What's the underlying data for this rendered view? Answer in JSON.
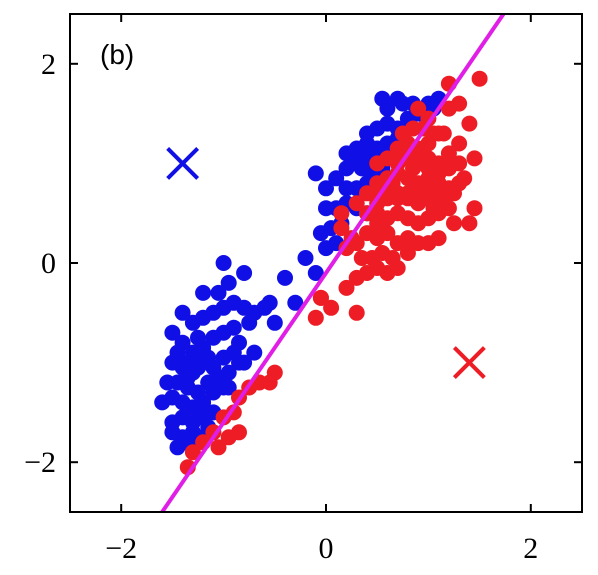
{
  "chart_data": {
    "type": "scatter",
    "title": "",
    "panel_label": "(b)",
    "xlabel": "",
    "ylabel": "",
    "xlim": [
      -2.5,
      2.5
    ],
    "ylim": [
      -2.5,
      2.5
    ],
    "x_ticks": [
      -2,
      0,
      2
    ],
    "x_tick_labels": [
      "−2",
      "0",
      "2"
    ],
    "y_ticks": [
      -2,
      0,
      2
    ],
    "y_tick_labels": [
      "−2",
      "0",
      "2"
    ],
    "grid": false,
    "legend": "none",
    "colors": {
      "blue": "#1010e6",
      "red": "#ee1c24",
      "line": "#e01ee6",
      "axes": "#000000"
    },
    "series": [
      {
        "color": "blue",
        "marker": "circle",
        "points": [
          [
            -1.4,
            -0.5
          ],
          [
            -1.3,
            -0.6
          ],
          [
            -1.2,
            -0.55
          ],
          [
            -1.1,
            -0.5
          ],
          [
            -1.0,
            -0.45
          ],
          [
            -0.9,
            -0.4
          ],
          [
            -0.8,
            -0.45
          ],
          [
            -1.05,
            -0.3
          ],
          [
            -0.95,
            -0.2
          ],
          [
            -0.8,
            -0.1
          ],
          [
            -1.2,
            -0.3
          ],
          [
            -1.0,
            0.0
          ],
          [
            -1.5,
            -0.7
          ],
          [
            -1.4,
            -0.8
          ],
          [
            -1.3,
            -0.9
          ],
          [
            -1.2,
            -0.85
          ],
          [
            -1.1,
            -0.75
          ],
          [
            -1.0,
            -0.7
          ],
          [
            -0.9,
            -0.65
          ],
          [
            -0.75,
            -0.6
          ],
          [
            -0.7,
            -0.5
          ],
          [
            -0.6,
            -0.45
          ],
          [
            -0.55,
            -0.4
          ],
          [
            -0.85,
            -0.8
          ],
          [
            -1.5,
            -1.0
          ],
          [
            -1.4,
            -1.05
          ],
          [
            -1.3,
            -1.1
          ],
          [
            -1.2,
            -1.0
          ],
          [
            -1.1,
            -1.05
          ],
          [
            -1.0,
            -0.95
          ],
          [
            -0.9,
            -0.9
          ],
          [
            -0.8,
            -1.0
          ],
          [
            -1.45,
            -1.2
          ],
          [
            -1.35,
            -1.25
          ],
          [
            -1.25,
            -1.3
          ],
          [
            -1.15,
            -1.2
          ],
          [
            -1.05,
            -1.15
          ],
          [
            -0.95,
            -1.1
          ],
          [
            -1.6,
            -1.4
          ],
          [
            -1.5,
            -1.35
          ],
          [
            -1.4,
            -1.4
          ],
          [
            -1.3,
            -1.45
          ],
          [
            -1.2,
            -1.4
          ],
          [
            -1.1,
            -1.3
          ],
          [
            -1.0,
            -1.25
          ],
          [
            -1.5,
            -1.6
          ],
          [
            -1.4,
            -1.55
          ],
          [
            -1.3,
            -1.6
          ],
          [
            -1.2,
            -1.55
          ],
          [
            -1.1,
            -1.5
          ],
          [
            -1.5,
            -1.7
          ],
          [
            -1.4,
            -1.75
          ],
          [
            -1.3,
            -1.7
          ],
          [
            -1.45,
            -1.85
          ],
          [
            -1.35,
            -1.8
          ],
          [
            -1.25,
            -1.75
          ],
          [
            -1.15,
            -1.65
          ],
          [
            -1.35,
            -1.0
          ],
          [
            -1.25,
            -0.75
          ],
          [
            -1.55,
            -1.2
          ],
          [
            -1.45,
            -0.9
          ],
          [
            -1.15,
            -0.95
          ],
          [
            -0.85,
            -1.0
          ],
          [
            -0.95,
            -1.25
          ],
          [
            -1.35,
            -1.15
          ],
          [
            -1.25,
            -1.05
          ],
          [
            -0.7,
            -0.9
          ],
          [
            -0.5,
            -0.6
          ],
          [
            -0.4,
            -0.15
          ],
          [
            -0.3,
            -0.4
          ],
          [
            -0.1,
            -0.1
          ],
          [
            -0.2,
            0.05
          ],
          [
            0.0,
            0.15
          ],
          [
            0.1,
            0.2
          ],
          [
            -0.05,
            0.3
          ],
          [
            0.05,
            0.35
          ],
          [
            0.15,
            0.4
          ],
          [
            0.0,
            0.55
          ],
          [
            0.1,
            0.55
          ],
          [
            0.2,
            0.6
          ],
          [
            0.3,
            0.55
          ],
          [
            0.4,
            0.5
          ],
          [
            0.2,
            0.75
          ],
          [
            0.3,
            0.75
          ],
          [
            0.4,
            0.8
          ],
          [
            0.5,
            0.85
          ],
          [
            0.1,
            0.85
          ],
          [
            0.2,
            0.95
          ],
          [
            0.3,
            1.0
          ],
          [
            0.4,
            1.05
          ],
          [
            0.5,
            1.0
          ],
          [
            0.6,
            1.05
          ],
          [
            0.2,
            1.1
          ],
          [
            0.3,
            1.15
          ],
          [
            0.4,
            1.2
          ],
          [
            0.5,
            1.15
          ],
          [
            0.6,
            1.2
          ],
          [
            0.7,
            1.25
          ],
          [
            0.4,
            1.3
          ],
          [
            0.5,
            1.35
          ],
          [
            0.6,
            1.4
          ],
          [
            0.7,
            1.35
          ],
          [
            0.8,
            1.45
          ],
          [
            0.9,
            1.5
          ],
          [
            0.6,
            1.55
          ],
          [
            0.75,
            1.6
          ],
          [
            0.85,
            1.6
          ],
          [
            1.0,
            1.6
          ],
          [
            1.1,
            1.65
          ],
          [
            1.05,
            1.55
          ],
          [
            0.55,
            1.65
          ],
          [
            0.7,
            1.65
          ],
          [
            -0.1,
            0.9
          ],
          [
            0.0,
            0.75
          ],
          [
            0.35,
            0.95
          ],
          [
            0.45,
            0.9
          ],
          [
            0.65,
            1.1
          ],
          [
            0.75,
            1.3
          ],
          [
            0.55,
            0.95
          ]
        ]
      },
      {
        "color": "red",
        "marker": "circle",
        "points": [
          [
            0.5,
            0.4
          ],
          [
            0.6,
            0.45
          ],
          [
            0.7,
            0.5
          ],
          [
            0.8,
            0.45
          ],
          [
            0.9,
            0.4
          ],
          [
            1.0,
            0.45
          ],
          [
            1.1,
            0.5
          ],
          [
            1.2,
            0.55
          ],
          [
            0.5,
            0.6
          ],
          [
            0.6,
            0.65
          ],
          [
            0.7,
            0.7
          ],
          [
            0.8,
            0.65
          ],
          [
            0.9,
            0.6
          ],
          [
            1.0,
            0.65
          ],
          [
            1.1,
            0.7
          ],
          [
            1.2,
            0.75
          ],
          [
            0.5,
            0.8
          ],
          [
            0.6,
            0.85
          ],
          [
            0.7,
            0.9
          ],
          [
            0.8,
            0.85
          ],
          [
            0.9,
            0.8
          ],
          [
            1.0,
            0.85
          ],
          [
            1.1,
            0.9
          ],
          [
            1.2,
            0.95
          ],
          [
            0.5,
            1.0
          ],
          [
            0.6,
            1.05
          ],
          [
            0.7,
            1.0
          ],
          [
            0.8,
            1.05
          ],
          [
            0.9,
            1.0
          ],
          [
            1.0,
            1.05
          ],
          [
            1.1,
            1.0
          ],
          [
            0.7,
            1.15
          ],
          [
            0.8,
            1.2
          ],
          [
            0.9,
            1.15
          ],
          [
            1.0,
            1.2
          ],
          [
            0.75,
            1.3
          ],
          [
            0.85,
            1.35
          ],
          [
            0.95,
            1.35
          ],
          [
            1.05,
            1.3
          ],
          [
            0.4,
            0.3
          ],
          [
            0.5,
            0.25
          ],
          [
            0.6,
            0.3
          ],
          [
            0.7,
            0.2
          ],
          [
            0.8,
            0.25
          ],
          [
            0.9,
            0.2
          ],
          [
            1.0,
            0.2
          ],
          [
            1.1,
            0.25
          ],
          [
            0.3,
            0.6
          ],
          [
            0.4,
            0.7
          ],
          [
            0.5,
            0.65
          ],
          [
            0.6,
            0.7
          ],
          [
            0.7,
            0.65
          ],
          [
            0.8,
            0.7
          ],
          [
            0.9,
            0.75
          ],
          [
            1.0,
            0.75
          ],
          [
            1.1,
            0.8
          ],
          [
            0.4,
            0.5
          ],
          [
            0.5,
            0.5
          ],
          [
            1.3,
            1.0
          ],
          [
            1.3,
            0.8
          ],
          [
            1.2,
            1.1
          ],
          [
            1.15,
            1.3
          ],
          [
            1.0,
            1.45
          ],
          [
            0.9,
            1.55
          ],
          [
            1.4,
            0.4
          ],
          [
            1.45,
            0.55
          ],
          [
            0.8,
            0.1
          ],
          [
            0.65,
            0.05
          ],
          [
            0.55,
            0.1
          ],
          [
            0.45,
            0.05
          ],
          [
            0.35,
            0.05
          ],
          [
            0.3,
            0.2
          ],
          [
            0.25,
            0.25
          ],
          [
            0.2,
            0.15
          ],
          [
            1.0,
            0.95
          ],
          [
            0.95,
            1.1
          ],
          [
            0.85,
            0.95
          ],
          [
            0.65,
            0.8
          ],
          [
            1.05,
            0.55
          ],
          [
            1.15,
            0.65
          ],
          [
            1.25,
            0.7
          ],
          [
            1.35,
            0.85
          ],
          [
            1.3,
            1.2
          ],
          [
            1.4,
            1.4
          ],
          [
            1.5,
            1.85
          ],
          [
            1.3,
            1.6
          ],
          [
            1.2,
            1.55
          ],
          [
            1.2,
            1.8
          ],
          [
            1.1,
            1.3
          ],
          [
            0.7,
            -0.05
          ],
          [
            0.6,
            -0.1
          ],
          [
            0.5,
            -0.05
          ],
          [
            0.4,
            -0.1
          ],
          [
            0.3,
            -0.15
          ],
          [
            0.2,
            -0.25
          ],
          [
            -0.05,
            -0.35
          ],
          [
            0.05,
            -0.45
          ],
          [
            -0.1,
            -0.55
          ],
          [
            0.3,
            -0.5
          ],
          [
            -0.05,
            -0.35
          ],
          [
            -0.5,
            -1.1
          ],
          [
            -0.55,
            -1.2
          ],
          [
            -0.65,
            -1.2
          ],
          [
            -0.75,
            -1.25
          ],
          [
            -0.85,
            -1.35
          ],
          [
            -0.9,
            -1.5
          ],
          [
            -1.0,
            -1.55
          ],
          [
            -1.1,
            -1.7
          ],
          [
            -1.2,
            -1.8
          ],
          [
            -1.3,
            -1.9
          ],
          [
            -1.35,
            -2.05
          ],
          [
            -0.95,
            -1.75
          ],
          [
            -0.85,
            -1.7
          ],
          [
            -1.05,
            -1.85
          ],
          [
            0.15,
            0.5
          ],
          [
            0.15,
            0.35
          ],
          [
            1.25,
            0.4
          ],
          [
            1.45,
            1.05
          ]
        ]
      }
    ],
    "markers_x": [
      {
        "x": -1.4,
        "y": 1.0,
        "color": "blue"
      },
      {
        "x": 1.4,
        "y": -1.0,
        "color": "red"
      }
    ],
    "line": {
      "x": [
        -2.0,
        2.0
      ],
      "y": [
        -3.1,
        2.9
      ],
      "color": "line"
    }
  }
}
